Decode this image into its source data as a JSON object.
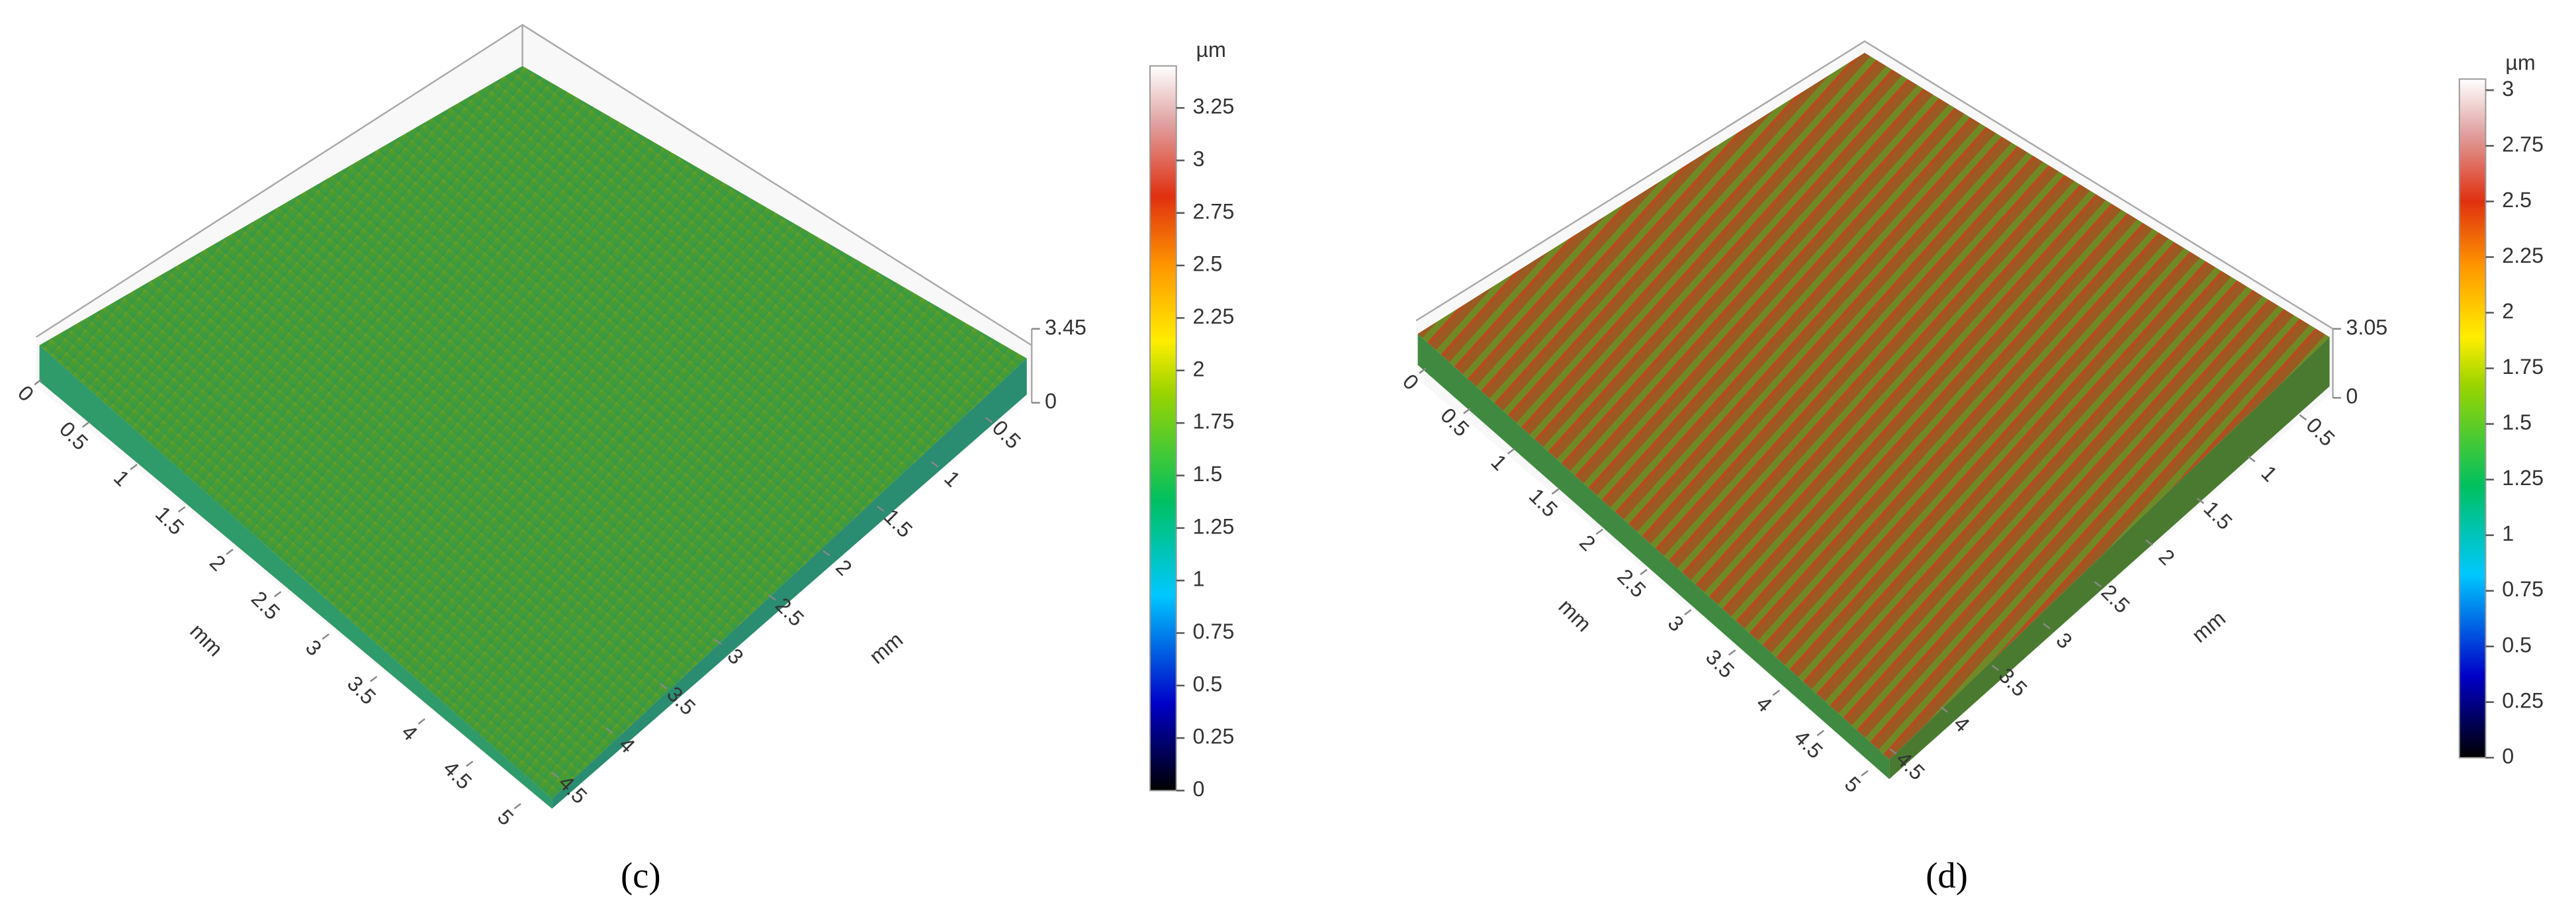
{
  "figure": {
    "panels": [
      {
        "caption": "(c)",
        "x_axis": {
          "label": "mm",
          "lim": [
            0,
            5
          ],
          "ticks": [
            0,
            0.5,
            1,
            1.5,
            2,
            2.5,
            3,
            3.5,
            4,
            4.5,
            5
          ]
        },
        "y_axis": {
          "label": "mm",
          "lim": [
            0,
            5
          ],
          "ticks": [
            0.5,
            1,
            1.5,
            2,
            2.5,
            3,
            3.5,
            4,
            4.5
          ]
        },
        "z_axis": {
          "lim": [
            0,
            3.45
          ],
          "ticks": [
            0,
            3.45
          ]
        },
        "colorbar": {
          "unit": "µm",
          "lim": [
            0,
            3.45
          ],
          "ticks": [
            0,
            0.25,
            0.5,
            0.75,
            1,
            1.25,
            1.5,
            1.75,
            2,
            2.25,
            2.5,
            2.75,
            3,
            3.25
          ]
        }
      },
      {
        "caption": "(d)",
        "x_axis": {
          "label": "mm",
          "lim": [
            0,
            5
          ],
          "ticks": [
            0,
            0.5,
            1,
            1.5,
            2,
            2.5,
            3,
            3.5,
            4,
            4.5,
            5
          ]
        },
        "y_axis": {
          "label": "mm",
          "lim": [
            0,
            5
          ],
          "ticks": [
            0.5,
            1,
            1.5,
            2,
            2.5,
            3,
            3.5,
            4,
            4.5
          ]
        },
        "z_axis": {
          "lim": [
            0,
            3.05
          ],
          "ticks": [
            0,
            3.05
          ]
        },
        "colorbar": {
          "unit": "µm",
          "lim": [
            0,
            3.05
          ],
          "ticks": [
            0,
            0.25,
            0.5,
            0.75,
            1,
            1.25,
            1.5,
            1.75,
            2,
            2.25,
            2.5,
            2.75,
            3
          ]
        }
      }
    ]
  }
}
